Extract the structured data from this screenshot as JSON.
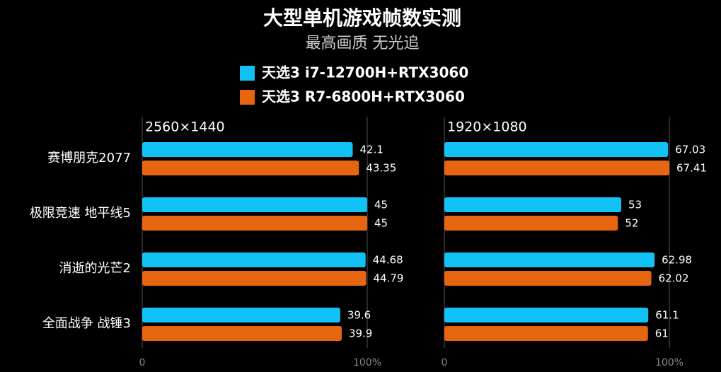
{
  "chart_data": [
    {
      "type": "barh",
      "title": "大型单机游戏帧数实测",
      "subtitle": "最高画质 无光追",
      "panel_label": "2560×1440",
      "categories": [
        "赛博朋克2077",
        "极限竞速 地平线5",
        "消逝的光芒2",
        "全面战争 战锤3"
      ],
      "series": [
        {
          "name": "天选3 i7-12700H+RTX3060",
          "color": "#12c2f4",
          "values": [
            42.1,
            45,
            44.68,
            39.6
          ]
        },
        {
          "name": "天选3 R7-6800H+RTX3060",
          "color": "#e8650f",
          "values": [
            43.35,
            45,
            44.79,
            39.9
          ]
        }
      ],
      "xlim": [
        0,
        45
      ],
      "xticks": [
        0,
        {
          "value": 45,
          "label": "100%"
        }
      ]
    },
    {
      "type": "barh",
      "panel_label": "1920×1080",
      "series": [
        {
          "color": "#12c2f4",
          "values": [
            67.03,
            53,
            62.98,
            61.1
          ]
        },
        {
          "color": "#e8650f",
          "values": [
            67.41,
            52,
            62.02,
            61
          ]
        }
      ],
      "xlim": [
        0,
        67.41
      ],
      "xticks": [
        0,
        {
          "value": 67.41,
          "label": "100%"
        }
      ]
    }
  ]
}
